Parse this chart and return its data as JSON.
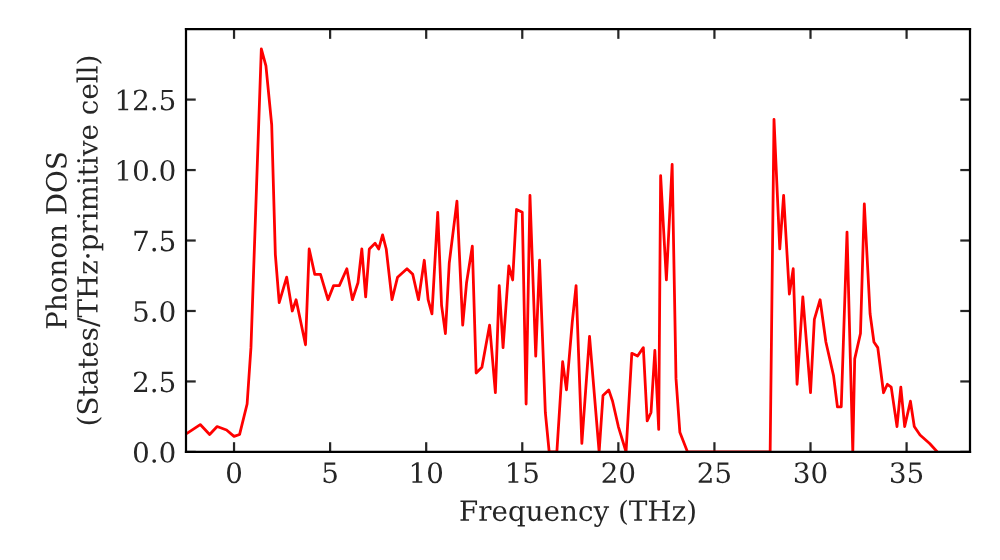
{
  "chart_data": {
    "type": "line",
    "xlabel": "Frequency (THz)",
    "ylabel": "Phonon DOS\n(States/THz·primitive cell)",
    "xlim": [
      -2.5,
      38.3
    ],
    "ylim": [
      0,
      15
    ],
    "xticks": [
      0,
      5,
      10,
      15,
      20,
      25,
      30,
      35
    ],
    "yticks": [
      {
        "value": 0,
        "label": "0.0"
      },
      2.5,
      {
        "value": 5,
        "label": "5.0"
      },
      7.5,
      {
        "value": 10,
        "label": "10.0"
      },
      12.5
    ],
    "grid": false,
    "marker": "none",
    "line_style": "solid",
    "series": [
      {
        "color": "#ff0000",
        "x": [
          -2.45,
          -1.76,
          -1.27,
          -0.88,
          -0.39,
          0,
          0.29,
          0.68,
          0.88,
          1.17,
          1.42,
          1.66,
          1.96,
          2.15,
          2.35,
          2.74,
          3.03,
          3.23,
          3.72,
          3.91,
          4.2,
          4.5,
          4.89,
          5.18,
          5.48,
          5.87,
          6.16,
          6.45,
          6.65,
          6.85,
          7.04,
          7.34,
          7.53,
          7.73,
          7.92,
          8.22,
          8.51,
          9.0,
          9.3,
          9.6,
          9.9,
          10.1,
          10.3,
          10.6,
          10.8,
          11.0,
          11.2,
          11.4,
          11.6,
          11.9,
          12.1,
          12.4,
          12.6,
          12.9,
          13.3,
          13.6,
          13.8,
          14.0,
          14.3,
          14.5,
          14.7,
          15.0,
          15.2,
          15.4,
          15.7,
          15.9,
          16.2,
          16.4,
          16.8,
          17.1,
          17.3,
          17.6,
          17.8,
          18.1,
          18.5,
          19.0,
          19.2,
          19.5,
          19.7,
          20.0,
          20.4,
          20.7,
          21.0,
          21.3,
          21.5,
          21.7,
          21.9,
          22.1,
          22.2,
          22.5,
          22.8,
          23.0,
          23.2,
          23.6,
          23.9,
          27.9,
          28.1,
          28.4,
          28.6,
          28.9,
          29.1,
          29.3,
          29.6,
          30.0,
          30.2,
          30.5,
          30.8,
          31.2,
          31.4,
          31.6,
          31.9,
          32.2,
          32.3,
          32.6,
          32.8,
          33.1,
          33.3,
          33.5,
          33.8,
          34.0,
          34.2,
          34.5,
          34.7,
          34.9,
          35.2,
          35.4,
          35.7,
          36.2,
          36.6
        ],
        "values": [
          0.66,
          0.97,
          0.62,
          0.9,
          0.78,
          0.55,
          0.62,
          1.7,
          3.7,
          9.4,
          14.3,
          13.7,
          11.6,
          7.0,
          5.3,
          6.2,
          5.0,
          5.4,
          3.8,
          7.2,
          6.3,
          6.3,
          5.4,
          5.9,
          5.9,
          6.5,
          5.4,
          6.0,
          7.2,
          5.5,
          7.2,
          7.4,
          7.2,
          7.7,
          7.2,
          5.4,
          6.2,
          6.5,
          6.3,
          5.4,
          6.8,
          5.4,
          4.9,
          8.5,
          5.2,
          4.2,
          6.7,
          7.8,
          8.9,
          4.5,
          6.0,
          7.3,
          2.8,
          3.0,
          4.5,
          2.1,
          5.9,
          3.7,
          6.6,
          6.1,
          8.6,
          8.5,
          1.7,
          9.1,
          3.4,
          6.8,
          1.4,
          0,
          0,
          3.2,
          2.2,
          4.6,
          5.9,
          0.3,
          4.1,
          0,
          2.0,
          2.2,
          1.8,
          0.9,
          0,
          3.5,
          3.4,
          3.7,
          1.1,
          1.4,
          3.6,
          0.8,
          9.8,
          6.1,
          10.2,
          2.6,
          0.7,
          0,
          0,
          0,
          11.8,
          7.2,
          9.1,
          5.6,
          6.5,
          2.4,
          5.5,
          2.1,
          4.7,
          5.4,
          3.9,
          2.7,
          1.6,
          1.6,
          7.8,
          0,
          3.3,
          4.2,
          8.8,
          4.9,
          3.9,
          3.7,
          2.1,
          2.4,
          2.3,
          0.9,
          2.3,
          0.9,
          1.8,
          0.9,
          0.6,
          0.3,
          0
        ]
      }
    ]
  }
}
